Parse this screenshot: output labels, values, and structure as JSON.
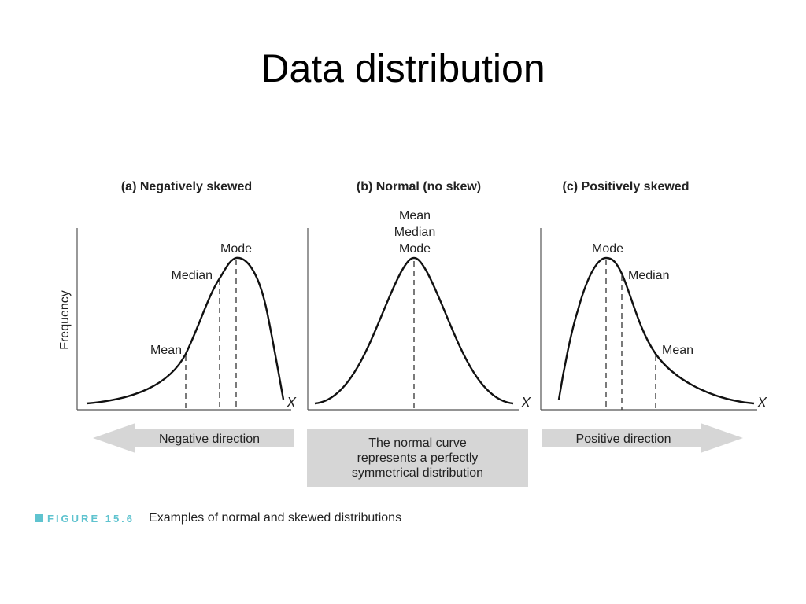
{
  "slide": {
    "title": "Data distribution"
  },
  "figure": {
    "y_axis_label": "Frequency",
    "x_axis_symbol": "X",
    "panels": [
      {
        "title": "(a) Negatively skewed",
        "labels": {
          "mode": "Mode",
          "median": "Median",
          "mean": "Mean"
        }
      },
      {
        "title": "(b) Normal (no skew)",
        "labels": {
          "mean": "Mean",
          "median": "Median",
          "mode": "Mode"
        }
      },
      {
        "title": "(c) Positively skewed",
        "labels": {
          "mode": "Mode",
          "median": "Median",
          "mean": "Mean"
        }
      }
    ],
    "directions": {
      "negative": "Negative direction",
      "center_line1": "The normal curve",
      "center_line2": "represents a perfectly",
      "center_line3": "symmetrical distribution",
      "positive": "Positive direction"
    },
    "caption": {
      "figure_label": "FIGURE 15.6",
      "text": "Examples of normal and skewed distributions"
    },
    "colors": {
      "arrow_fill": "#d6d6d6",
      "caption_accent": "#5fc3cf",
      "curve": "#000000"
    }
  }
}
